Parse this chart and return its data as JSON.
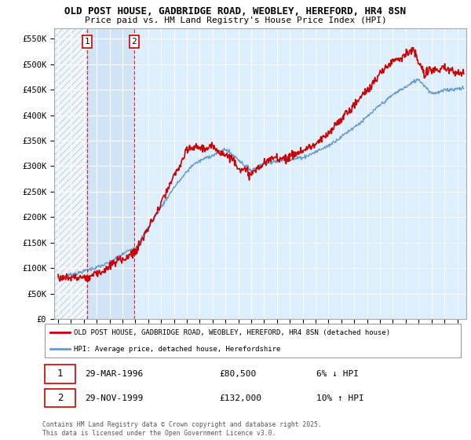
{
  "title_line1": "OLD POST HOUSE, GADBRIDGE ROAD, WEOBLEY, HEREFORD, HR4 8SN",
  "title_line2": "Price paid vs. HM Land Registry's House Price Index (HPI)",
  "ylim": [
    0,
    570000
  ],
  "xlim": [
    1993.7,
    2025.7
  ],
  "yticks": [
    0,
    50000,
    100000,
    150000,
    200000,
    250000,
    300000,
    350000,
    400000,
    450000,
    500000,
    550000
  ],
  "ytick_labels": [
    "£0",
    "£50K",
    "£100K",
    "£150K",
    "£200K",
    "£250K",
    "£300K",
    "£350K",
    "£400K",
    "£450K",
    "£500K",
    "£550K"
  ],
  "background_color": "#ffffff",
  "plot_bg_color": "#ddeeff",
  "grid_color": "#ffffff",
  "hpi_color": "#6699cc",
  "price_color": "#cc0000",
  "sale1_date": 1996.24,
  "sale1_price": 80500,
  "sale1_label": "1",
  "sale2_date": 1999.91,
  "sale2_price": 132000,
  "sale2_label": "2",
  "legend_house": "OLD POST HOUSE, GADBRIDGE ROAD, WEOBLEY, HEREFORD, HR4 8SN (detached house)",
  "legend_hpi": "HPI: Average price, detached house, Herefordshire",
  "transaction1": "29-MAR-1996",
  "transaction1_price": "£80,500",
  "transaction1_hpi": "6% ↓ HPI",
  "transaction2": "29-NOV-1999",
  "transaction2_price": "£132,000",
  "transaction2_hpi": "10% ↑ HPI",
  "footnote": "Contains HM Land Registry data © Crown copyright and database right 2025.\nThis data is licensed under the Open Government Licence v3.0."
}
